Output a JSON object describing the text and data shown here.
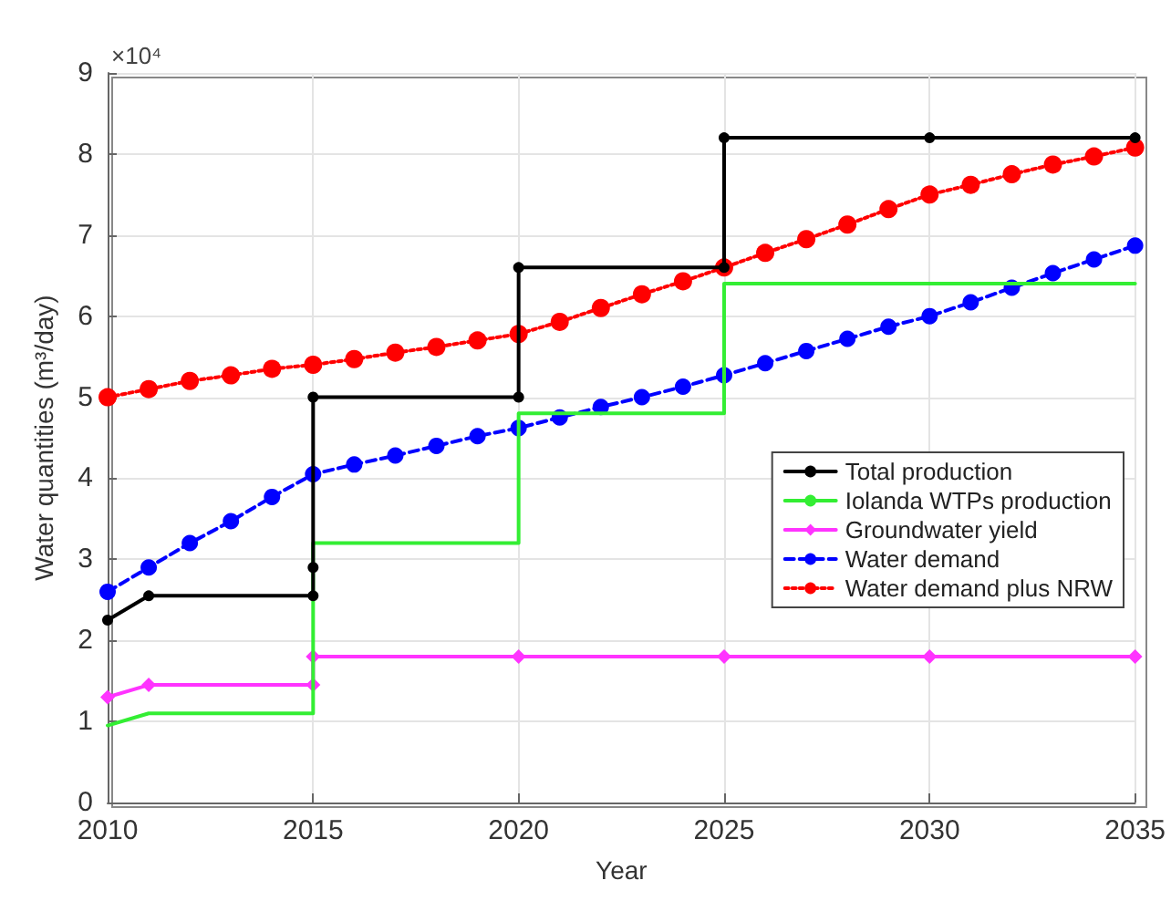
{
  "chart_data": {
    "type": "line",
    "xlabel": "Year",
    "ylabel": "Water quantities (m³/day)",
    "annotations": [
      "×10⁴"
    ],
    "xlim": [
      2010,
      2035
    ],
    "xticks": [
      2010,
      2015,
      2020,
      2025,
      2030,
      2035
    ],
    "ylim": [
      0,
      9
    ],
    "yticks": [
      0,
      1,
      2,
      3,
      4,
      5,
      6,
      7,
      8,
      9
    ],
    "grid": true,
    "legend": "right",
    "series": [
      {
        "name": "Total production",
        "color": "#000000",
        "marker": "circle",
        "line_style": "solid",
        "x": [
          2010,
          2011,
          2015,
          2015,
          2015,
          2020,
          2020,
          2025,
          2025,
          2030,
          2035
        ],
        "values": [
          2.25,
          2.55,
          2.55,
          2.9,
          5.0,
          5.0,
          6.6,
          6.6,
          8.2,
          8.2,
          8.2
        ]
      },
      {
        "name": "Iolanda WTPs production",
        "color": "#33ee33",
        "marker": "none",
        "line_style": "solid",
        "x": [
          2010,
          2011,
          2015,
          2015,
          2020,
          2020,
          2025,
          2025,
          2035
        ],
        "values": [
          0.95,
          1.1,
          1.1,
          3.2,
          3.2,
          4.8,
          4.8,
          6.4,
          6.4
        ]
      },
      {
        "name": "Groundwater yield",
        "color": "#ff33ff",
        "marker": "diamond",
        "line_style": "solid",
        "x": [
          2010,
          2011,
          2015,
          2015,
          2020,
          2025,
          2030,
          2035
        ],
        "values": [
          1.3,
          1.45,
          1.45,
          1.8,
          1.8,
          1.8,
          1.8,
          1.8
        ]
      },
      {
        "name": "Water demand",
        "color": "#0000ff",
        "marker": "circle",
        "line_style": "dashed",
        "x": [
          2010,
          2011,
          2012,
          2013,
          2014,
          2015,
          2016,
          2017,
          2018,
          2019,
          2020,
          2021,
          2022,
          2023,
          2024,
          2025,
          2026,
          2027,
          2028,
          2029,
          2030,
          2031,
          2032,
          2033,
          2034,
          2035
        ],
        "values": [
          2.6,
          2.9,
          3.2,
          3.47,
          3.77,
          4.05,
          4.17,
          4.28,
          4.4,
          4.52,
          4.62,
          4.75,
          4.88,
          5.0,
          5.13,
          5.27,
          5.42,
          5.57,
          5.72,
          5.87,
          6.0,
          6.17,
          6.35,
          6.53,
          6.7,
          6.87
        ]
      },
      {
        "name": "Water demand plus NRW",
        "color": "#ff0000",
        "marker": "circle",
        "line_style": "dotted",
        "x": [
          2010,
          2011,
          2012,
          2013,
          2014,
          2015,
          2016,
          2017,
          2018,
          2019,
          2020,
          2021,
          2022,
          2023,
          2024,
          2025,
          2026,
          2027,
          2028,
          2029,
          2030,
          2031,
          2032,
          2033,
          2034,
          2035
        ],
        "values": [
          5.0,
          5.1,
          5.2,
          5.27,
          5.35,
          5.4,
          5.47,
          5.55,
          5.62,
          5.7,
          5.78,
          5.93,
          6.1,
          6.27,
          6.43,
          6.6,
          6.78,
          6.95,
          7.13,
          7.32,
          7.5,
          7.62,
          7.75,
          7.87,
          7.97,
          8.08
        ]
      }
    ]
  }
}
